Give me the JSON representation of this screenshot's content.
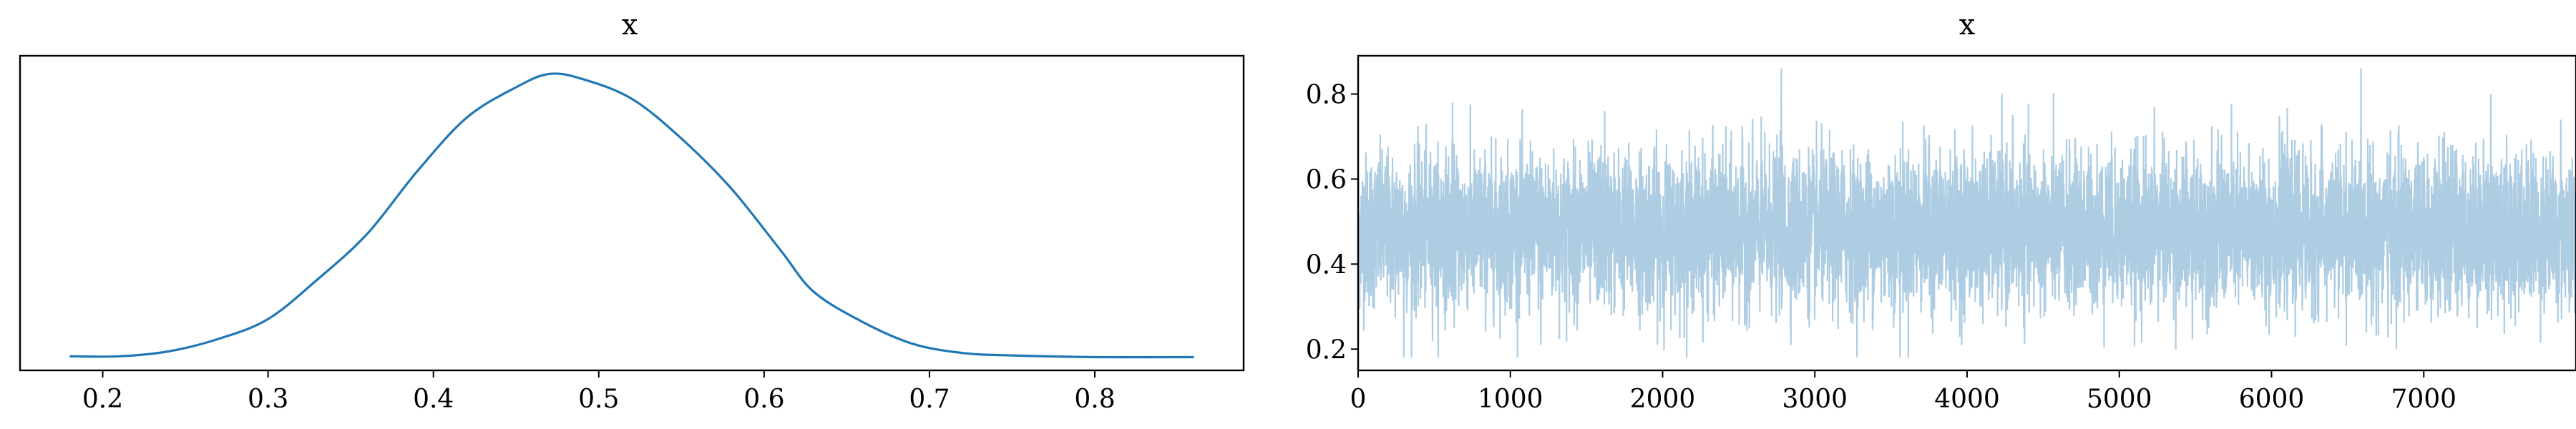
{
  "chart_data": [
    {
      "type": "line",
      "title": "x",
      "xlabel": "",
      "ylabel": "",
      "xlim": [
        0.15,
        0.89
      ],
      "ylim": [
        0,
        3.8
      ],
      "x_ticks": [
        "0.2",
        "0.3",
        "0.4",
        "0.5",
        "0.6",
        "0.7",
        "0.8"
      ],
      "y_ticks": [],
      "grid": false,
      "series": [
        {
          "color": "#1f77b4",
          "points": [
            [
              0.18,
              0.17
            ],
            [
              0.21,
              0.17
            ],
            [
              0.24,
              0.23
            ],
            [
              0.27,
              0.38
            ],
            [
              0.3,
              0.62
            ],
            [
              0.33,
              1.1
            ],
            [
              0.36,
              1.65
            ],
            [
              0.39,
              2.4
            ],
            [
              0.42,
              3.05
            ],
            [
              0.45,
              3.42
            ],
            [
              0.47,
              3.58
            ],
            [
              0.49,
              3.52
            ],
            [
              0.52,
              3.28
            ],
            [
              0.55,
              2.8
            ],
            [
              0.58,
              2.2
            ],
            [
              0.61,
              1.45
            ],
            [
              0.63,
              0.95
            ],
            [
              0.66,
              0.58
            ],
            [
              0.69,
              0.32
            ],
            [
              0.72,
              0.21
            ],
            [
              0.75,
              0.18
            ],
            [
              0.8,
              0.16
            ],
            [
              0.86,
              0.16
            ]
          ]
        }
      ]
    },
    {
      "type": "line",
      "title": "x",
      "xlabel": "",
      "ylabel": "",
      "xlim": [
        0,
        8000
      ],
      "ylim": [
        0.15,
        0.89
      ],
      "x_ticks": [
        "0",
        "1000",
        "2000",
        "3000",
        "4000",
        "5000",
        "6000",
        "7000"
      ],
      "y_ticks": [
        "0.2",
        "0.4",
        "0.6",
        "0.8"
      ],
      "grid": false,
      "series": [
        {
          "color": "#aecde3",
          "mean": 0.48,
          "spread": 0.09,
          "n_samples": 8000,
          "extremes": [
            [
              300,
              0.18
            ],
            [
              620,
              0.78
            ],
            [
              1200,
              0.21
            ],
            [
              1620,
              0.76
            ],
            [
              2780,
              0.86
            ],
            [
              3560,
              0.18
            ],
            [
              4300,
              0.75
            ],
            [
              5230,
              0.77
            ],
            [
              6820,
              0.2
            ],
            [
              7440,
              0.8
            ],
            [
              7900,
              0.74
            ]
          ]
        }
      ]
    }
  ]
}
